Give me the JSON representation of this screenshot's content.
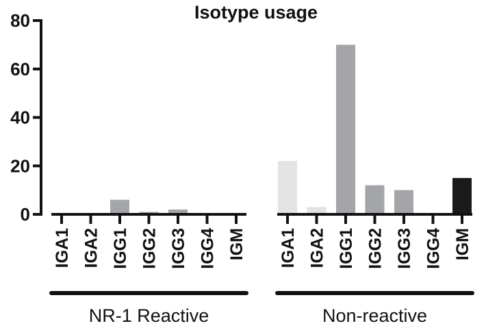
{
  "chart_data": {
    "type": "bar",
    "title": "Isotype usage",
    "ylim": [
      0,
      80
    ],
    "yticks": [
      0,
      20,
      40,
      60,
      80
    ],
    "groups": [
      {
        "name": "NR-1 Reactive",
        "categories": [
          "IGA1",
          "IGA2",
          "IGG1",
          "IGG2",
          "IGG3",
          "IGG4",
          "IGM"
        ],
        "values": [
          0,
          0,
          6,
          1,
          2,
          0,
          0
        ]
      },
      {
        "name": "Non-reactive",
        "categories": [
          "IGA1",
          "IGA2",
          "IGG1",
          "IGG2",
          "IGG3",
          "IGG4",
          "IGM"
        ],
        "values": [
          22,
          3,
          70,
          12,
          10,
          0,
          15
        ]
      }
    ],
    "colors": {
      "IGA1": "#e3e3e4",
      "IGA2": "#e3e3e4",
      "IGG1": "#a4a5a8",
      "IGG2": "#a4a5a8",
      "IGG3": "#a4a5a8",
      "IGG4": "#a4a5a8",
      "IGM": "#1a1a1a"
    },
    "grid": false,
    "legend": "none"
  }
}
